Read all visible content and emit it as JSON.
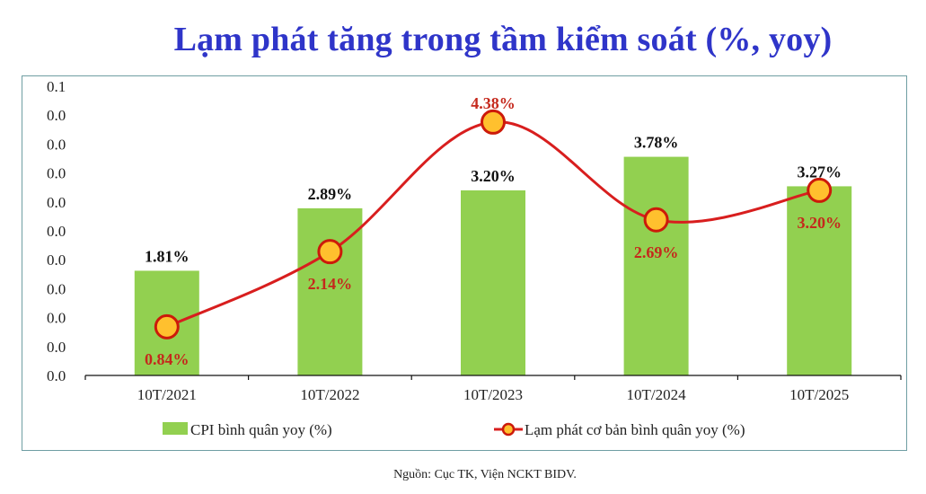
{
  "title": "Lạm phát tăng trong tầm kiểm soát (%, yoy)",
  "source": "Nguồn: Cục TK, Viện NCKT BIDV.",
  "colors": {
    "title": "#2f35c9",
    "bar": "#92d050",
    "line": "#d81e1e",
    "marker_fill": "#ffc02e",
    "marker_stroke": "#cc1a0a",
    "bar_label": "#111111",
    "line_label": "#c5281c",
    "frame": "#6f9ea3"
  },
  "y_tick_labels": [
    "0.1",
    "0.0",
    "0.0",
    "0.0",
    "0.0",
    "0.0",
    "0.0",
    "0.0",
    "0.0",
    "0.0",
    "0.0"
  ],
  "legend": {
    "bar": "CPI bình quân yoy (%)",
    "line": "Lạm phát cơ bản bình quân yoy (%)"
  },
  "chart_data": {
    "type": "bar",
    "title": "Lạm phát tăng trong tầm kiểm soát (%, yoy)",
    "xlabel": "",
    "ylabel": "",
    "categories": [
      "10T/2021",
      "10T/2022",
      "10T/2023",
      "10T/2024",
      "10T/2025"
    ],
    "series": [
      {
        "name": "CPI bình quân yoy (%)",
        "type": "bar",
        "values": [
          1.81,
          2.89,
          3.2,
          3.78,
          3.27
        ],
        "labels": [
          "1.81%",
          "2.89%",
          "3.20%",
          "3.78%",
          "3.27%"
        ]
      },
      {
        "name": "Lạm phát cơ bản bình quân yoy (%)",
        "type": "line",
        "smooth": true,
        "values": [
          0.84,
          2.14,
          4.38,
          2.69,
          3.2
        ],
        "labels": [
          "0.84%",
          "2.14%",
          "4.38%",
          "2.69%",
          "3.20%"
        ]
      }
    ],
    "ylim": [
      0,
      5
    ],
    "y_ticks_display": [
      "0.0",
      "0.0",
      "0.0",
      "0.0",
      "0.0",
      "0.0",
      "0.0",
      "0.0",
      "0.0",
      "0.0",
      "0.1"
    ],
    "grid": false,
    "legend_position": "bottom",
    "source": "Nguồn: Cục TK, Viện NCKT BIDV."
  }
}
